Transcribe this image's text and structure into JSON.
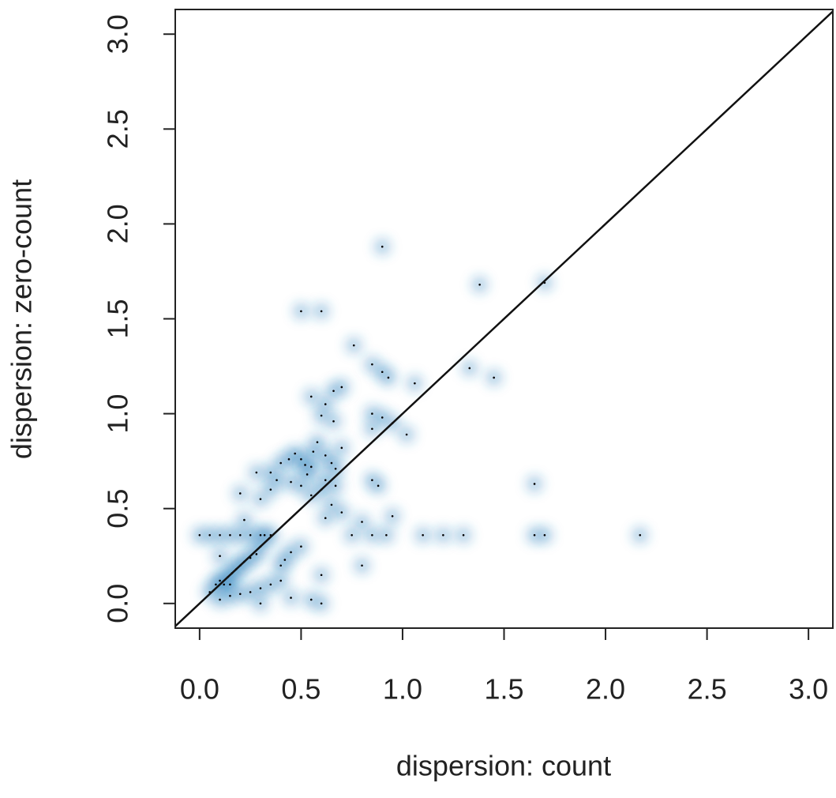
{
  "chart_data": {
    "type": "smoothscatter",
    "x_label": "dispersion: count",
    "y_label": "dispersion: zero-count",
    "xlim": [
      -0.12,
      3.12
    ],
    "ylim": [
      -0.13,
      3.13
    ],
    "xticks": [
      {
        "value": 0,
        "label": "0.0"
      },
      0.5,
      {
        "value": 1,
        "label": "1.0"
      },
      1.5,
      {
        "value": 2,
        "label": "2.0"
      },
      2.5,
      {
        "value": 3,
        "label": "3.0"
      }
    ],
    "yticks": [
      {
        "value": 0,
        "label": "0.0"
      },
      0.5,
      {
        "value": 1,
        "label": "1.0"
      },
      1.5,
      {
        "value": 2,
        "label": "2.0"
      },
      2.5,
      {
        "value": 3,
        "label": "3.0"
      }
    ],
    "color": "#2f7ebc",
    "reference_line": {
      "intercept": 0,
      "slope": 1
    },
    "x": [
      0.9,
      1.38,
      1.7,
      0.5,
      0.6,
      0.76,
      0.85,
      0.9,
      0.93,
      1.33,
      1.45,
      1.06,
      0.55,
      0.7,
      0.66,
      0.62,
      0.85,
      0.9,
      0.6,
      0.95,
      0.85,
      1.02,
      0.66,
      0.58,
      0.56,
      0.7,
      0.47,
      0.5,
      0.44,
      0.52,
      0.4,
      0.62,
      0.65,
      0.67,
      0.55,
      0.35,
      0.28,
      0.38,
      0.45,
      0.53,
      0.62,
      0.67,
      0.85,
      0.88,
      1.65,
      0.2,
      0.3,
      0.35,
      0.5,
      0.55,
      0.6,
      0.65,
      0.7,
      0.62,
      0.22,
      0.95,
      0.8,
      0.3,
      0.35,
      0.75,
      0.85,
      0.92,
      1.1,
      1.2,
      1.3,
      1.65,
      1.7,
      2.17,
      0.5,
      0.45,
      0.42,
      0.8,
      0.6,
      0.4,
      0.45,
      0.55,
      0.6,
      0.3,
      0.15,
      0.1,
      0.05,
      0.08,
      0.1,
      0.12,
      0.14,
      0.16,
      0.18,
      0.2,
      0.22,
      0.25,
      0.28,
      0.3,
      0.32,
      0.0,
      0.05,
      0.1,
      0.15,
      0.2,
      0.25,
      0.1,
      0.15,
      0.2,
      0.25,
      0.3,
      0.35,
      0.4
    ],
    "y": [
      1.88,
      1.68,
      1.69,
      1.54,
      1.54,
      1.36,
      1.26,
      1.22,
      1.19,
      1.24,
      1.19,
      1.16,
      1.09,
      1.14,
      1.12,
      1.05,
      1.0,
      0.98,
      0.99,
      0.95,
      0.92,
      0.89,
      0.96,
      0.85,
      0.8,
      0.82,
      0.79,
      0.76,
      0.76,
      0.73,
      0.74,
      0.78,
      0.74,
      0.71,
      0.72,
      0.69,
      0.69,
      0.65,
      0.64,
      0.68,
      0.65,
      0.62,
      0.65,
      0.62,
      0.63,
      0.58,
      0.55,
      0.6,
      0.62,
      0.57,
      0.6,
      0.52,
      0.48,
      0.45,
      0.44,
      0.46,
      0.43,
      0.36,
      0.36,
      0.36,
      0.36,
      0.36,
      0.36,
      0.36,
      0.36,
      0.36,
      0.36,
      0.36,
      0.3,
      0.27,
      0.23,
      0.2,
      0.15,
      0.12,
      0.03,
      0.02,
      0.0,
      0.0,
      0.1,
      0.25,
      0.06,
      0.1,
      0.12,
      0.1,
      0.14,
      0.16,
      0.18,
      0.2,
      0.22,
      0.24,
      0.26,
      0.3,
      0.36,
      0.36,
      0.36,
      0.36,
      0.36,
      0.36,
      0.36,
      0.02,
      0.04,
      0.05,
      0.06,
      0.08,
      0.1,
      0.2
    ]
  }
}
